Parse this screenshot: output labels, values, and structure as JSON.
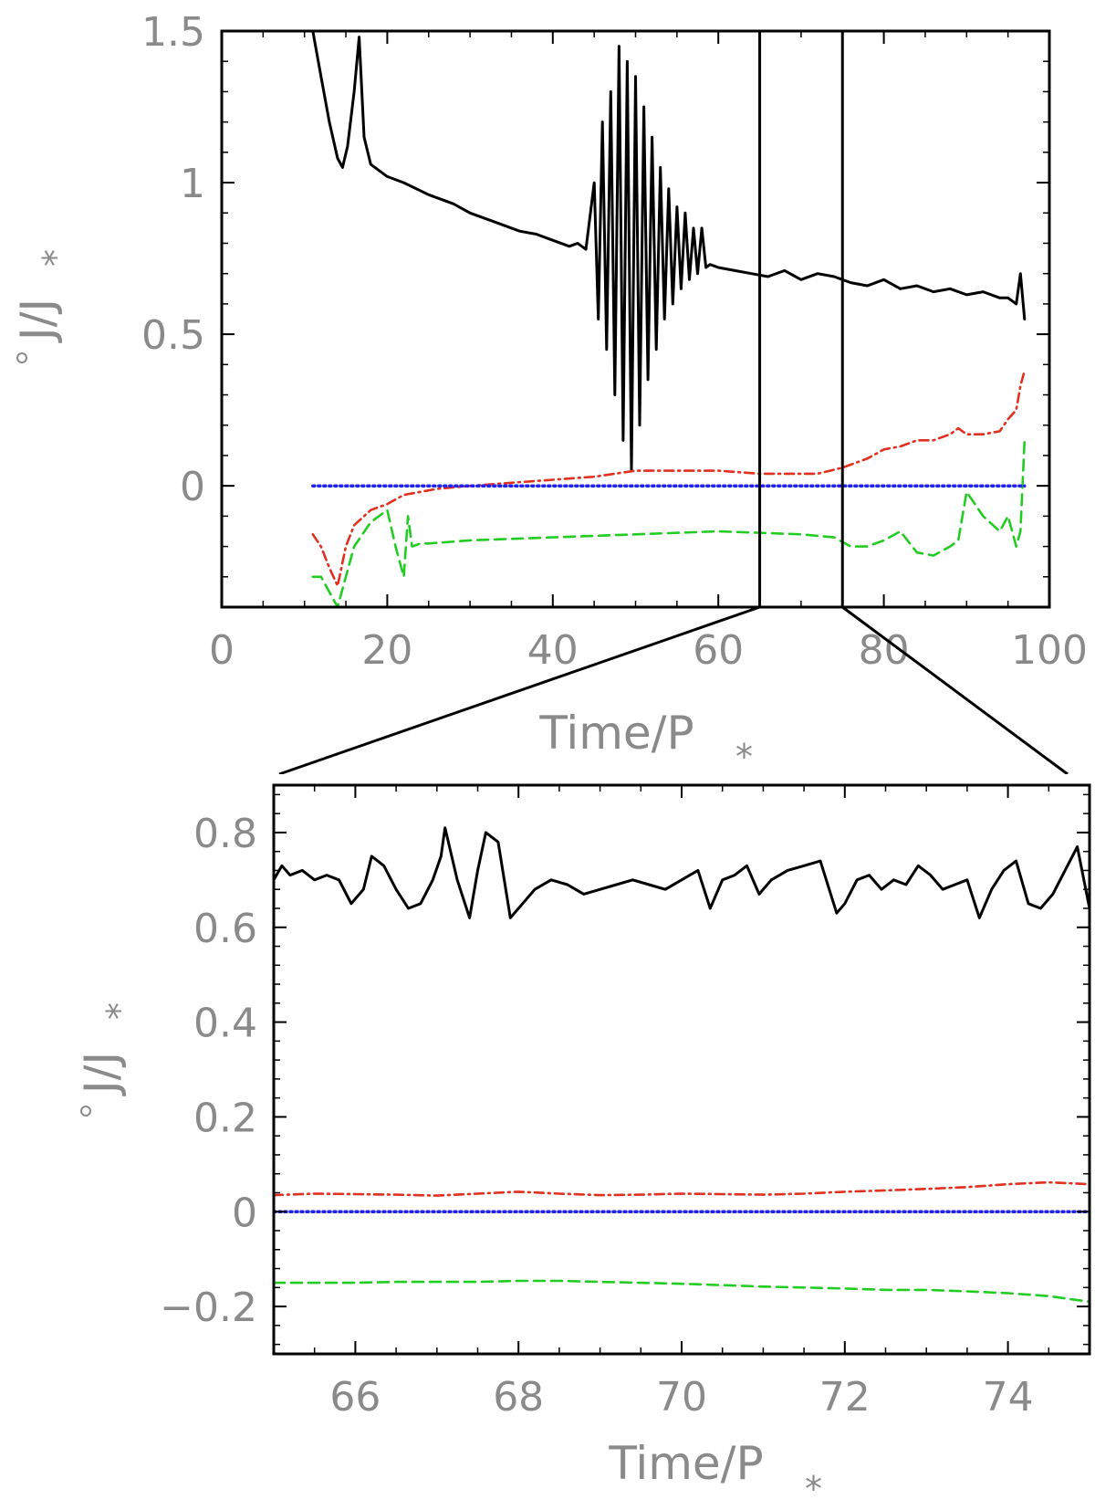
{
  "chart_data": [
    {
      "type": "line",
      "panel": "top",
      "xlabel": "Time/P",
      "xlabel_sub": "*",
      "ylabel": "J/J",
      "ylabel_sub": "*",
      "xlim": [
        0,
        100
      ],
      "ylim": [
        -0.4,
        1.5
      ],
      "xticks": [
        0,
        20,
        40,
        60,
        80,
        100
      ],
      "xtick_labels": [
        "0",
        "20",
        "40",
        "60",
        "80",
        "100"
      ],
      "yticks": [
        0,
        0.5,
        1,
        1.5
      ],
      "ytick_labels": [
        "0",
        "0.5",
        "1",
        "1.5"
      ],
      "zoom_window": [
        65,
        75
      ],
      "series": [
        {
          "color": "#000000",
          "style": "solid",
          "x": [
            11,
            12,
            13,
            14,
            14.6,
            15.2,
            16,
            16.6,
            17.2,
            18,
            20,
            22,
            25,
            28,
            30,
            33,
            36,
            38,
            40,
            42,
            43,
            44,
            45,
            45.5,
            46,
            46.5,
            47,
            47.5,
            48,
            48.5,
            49,
            49.5,
            50,
            50.5,
            51,
            51.5,
            52,
            52.5,
            53,
            53.5,
            54,
            54.5,
            55,
            55.5,
            56,
            56.5,
            57,
            57.5,
            58,
            58.5,
            59,
            60,
            62,
            64,
            66,
            68,
            70,
            72,
            74,
            76,
            78,
            80,
            82,
            84,
            86,
            88,
            90,
            92,
            94,
            95,
            96,
            96.5,
            97
          ],
          "y": [
            1.5,
            1.35,
            1.2,
            1.08,
            1.05,
            1.12,
            1.3,
            1.48,
            1.15,
            1.06,
            1.02,
            1.0,
            0.96,
            0.93,
            0.9,
            0.87,
            0.84,
            0.83,
            0.81,
            0.79,
            0.8,
            0.78,
            1.0,
            0.55,
            1.2,
            0.45,
            1.3,
            0.3,
            1.45,
            0.15,
            1.4,
            0.05,
            1.35,
            0.2,
            1.25,
            0.35,
            1.15,
            0.45,
            1.05,
            0.55,
            0.98,
            0.6,
            0.92,
            0.65,
            0.9,
            0.68,
            0.85,
            0.7,
            0.85,
            0.72,
            0.73,
            0.72,
            0.71,
            0.7,
            0.69,
            0.71,
            0.68,
            0.7,
            0.69,
            0.67,
            0.66,
            0.68,
            0.65,
            0.66,
            0.64,
            0.65,
            0.63,
            0.64,
            0.62,
            0.62,
            0.6,
            0.7,
            0.55
          ]
        },
        {
          "color": "#e03020",
          "style": "dash-dot",
          "x": [
            11,
            12,
            13,
            14,
            15,
            16,
            18,
            20,
            22,
            24,
            26,
            30,
            35,
            40,
            45,
            50,
            55,
            60,
            65,
            70,
            72,
            75,
            78,
            80,
            82,
            84,
            86,
            88,
            89,
            90,
            92,
            94,
            95,
            96,
            96.5,
            97
          ],
          "y": [
            -0.16,
            -0.2,
            -0.27,
            -0.33,
            -0.2,
            -0.13,
            -0.08,
            -0.06,
            -0.03,
            -0.02,
            -0.01,
            0.0,
            0.01,
            0.02,
            0.03,
            0.05,
            0.05,
            0.05,
            0.04,
            0.04,
            0.04,
            0.06,
            0.09,
            0.12,
            0.13,
            0.15,
            0.15,
            0.17,
            0.19,
            0.17,
            0.17,
            0.18,
            0.22,
            0.25,
            0.33,
            0.38
          ]
        },
        {
          "color": "#22cc22",
          "style": "dashed",
          "x": [
            11,
            12,
            13,
            14,
            15,
            16,
            18,
            20,
            21,
            22,
            22.5,
            23,
            24,
            25,
            30,
            40,
            50,
            60,
            70,
            74,
            76,
            78,
            80,
            82,
            84,
            86,
            88,
            89,
            90,
            92,
            94,
            95,
            96,
            96.5,
            97
          ],
          "y": [
            -0.3,
            -0.3,
            -0.35,
            -0.4,
            -0.3,
            -0.2,
            -0.12,
            -0.08,
            -0.2,
            -0.3,
            -0.1,
            -0.2,
            -0.19,
            -0.19,
            -0.18,
            -0.17,
            -0.16,
            -0.15,
            -0.16,
            -0.17,
            -0.2,
            -0.2,
            -0.18,
            -0.15,
            -0.22,
            -0.23,
            -0.2,
            -0.18,
            -0.02,
            -0.1,
            -0.15,
            -0.1,
            -0.2,
            -0.15,
            0.15
          ]
        },
        {
          "color": "#2222ee",
          "style": "dotted",
          "x": [
            11,
            97
          ],
          "y": [
            0,
            0
          ]
        }
      ]
    },
    {
      "type": "line",
      "panel": "bottom",
      "xlabel": "Time/P",
      "xlabel_sub": "*",
      "ylabel": "J/J",
      "ylabel_sub": "*",
      "xlim": [
        65,
        75
      ],
      "ylim": [
        -0.3,
        0.9
      ],
      "xticks": [
        66,
        68,
        70,
        72,
        74
      ],
      "xtick_labels": [
        "66",
        "68",
        "70",
        "72",
        "74"
      ],
      "yticks": [
        -0.2,
        0,
        0.2,
        0.4,
        0.6,
        0.8
      ],
      "ytick_labels": [
        "−0.2",
        "0",
        "0.2",
        "0.4",
        "0.6",
        "0.8"
      ],
      "series": [
        {
          "color": "#000000",
          "style": "solid",
          "x": [
            65.0,
            65.1,
            65.2,
            65.35,
            65.5,
            65.65,
            65.8,
            65.95,
            66.1,
            66.2,
            66.35,
            66.5,
            66.65,
            66.8,
            66.95,
            67.05,
            67.1,
            67.25,
            67.4,
            67.5,
            67.6,
            67.75,
            67.9,
            68.05,
            68.2,
            68.4,
            68.6,
            68.8,
            69.0,
            69.2,
            69.4,
            69.6,
            69.8,
            70.0,
            70.2,
            70.35,
            70.5,
            70.65,
            70.8,
            70.95,
            71.1,
            71.3,
            71.5,
            71.7,
            71.9,
            72.0,
            72.15,
            72.3,
            72.45,
            72.6,
            72.75,
            72.9,
            73.05,
            73.2,
            73.35,
            73.5,
            73.65,
            73.8,
            73.95,
            74.1,
            74.25,
            74.4,
            74.55,
            74.7,
            74.85,
            75.0
          ],
          "y": [
            0.7,
            0.73,
            0.71,
            0.72,
            0.7,
            0.71,
            0.7,
            0.65,
            0.68,
            0.75,
            0.73,
            0.68,
            0.64,
            0.65,
            0.7,
            0.75,
            0.81,
            0.7,
            0.62,
            0.72,
            0.8,
            0.78,
            0.62,
            0.65,
            0.68,
            0.7,
            0.69,
            0.67,
            0.68,
            0.69,
            0.7,
            0.69,
            0.68,
            0.7,
            0.72,
            0.64,
            0.7,
            0.71,
            0.73,
            0.67,
            0.7,
            0.72,
            0.73,
            0.74,
            0.63,
            0.65,
            0.7,
            0.71,
            0.68,
            0.7,
            0.69,
            0.73,
            0.71,
            0.68,
            0.69,
            0.7,
            0.62,
            0.68,
            0.72,
            0.74,
            0.65,
            0.64,
            0.67,
            0.72,
            0.77,
            0.64
          ]
        },
        {
          "color": "#e03020",
          "style": "dash-dot",
          "x": [
            65,
            65.5,
            66,
            66.5,
            67,
            67.5,
            68,
            68.5,
            69,
            69.5,
            70,
            70.5,
            71,
            71.5,
            72,
            72.5,
            73,
            73.5,
            74,
            74.5,
            75
          ],
          "y": [
            0.035,
            0.038,
            0.037,
            0.036,
            0.034,
            0.038,
            0.042,
            0.038,
            0.035,
            0.036,
            0.038,
            0.037,
            0.036,
            0.038,
            0.042,
            0.045,
            0.048,
            0.052,
            0.058,
            0.062,
            0.058
          ]
        },
        {
          "color": "#22cc22",
          "style": "dashed",
          "x": [
            65,
            65.5,
            66,
            66.5,
            67,
            67.5,
            68,
            68.5,
            69,
            69.5,
            70,
            70.5,
            71,
            71.5,
            72,
            72.5,
            73,
            73.5,
            74,
            74.5,
            75
          ],
          "y": [
            -0.15,
            -0.15,
            -0.15,
            -0.148,
            -0.148,
            -0.148,
            -0.146,
            -0.146,
            -0.148,
            -0.15,
            -0.152,
            -0.155,
            -0.158,
            -0.16,
            -0.162,
            -0.165,
            -0.165,
            -0.168,
            -0.172,
            -0.178,
            -0.19
          ]
        },
        {
          "color": "#2222ee",
          "style": "dotted",
          "x": [
            65,
            75
          ],
          "y": [
            0,
            0
          ]
        }
      ]
    }
  ]
}
